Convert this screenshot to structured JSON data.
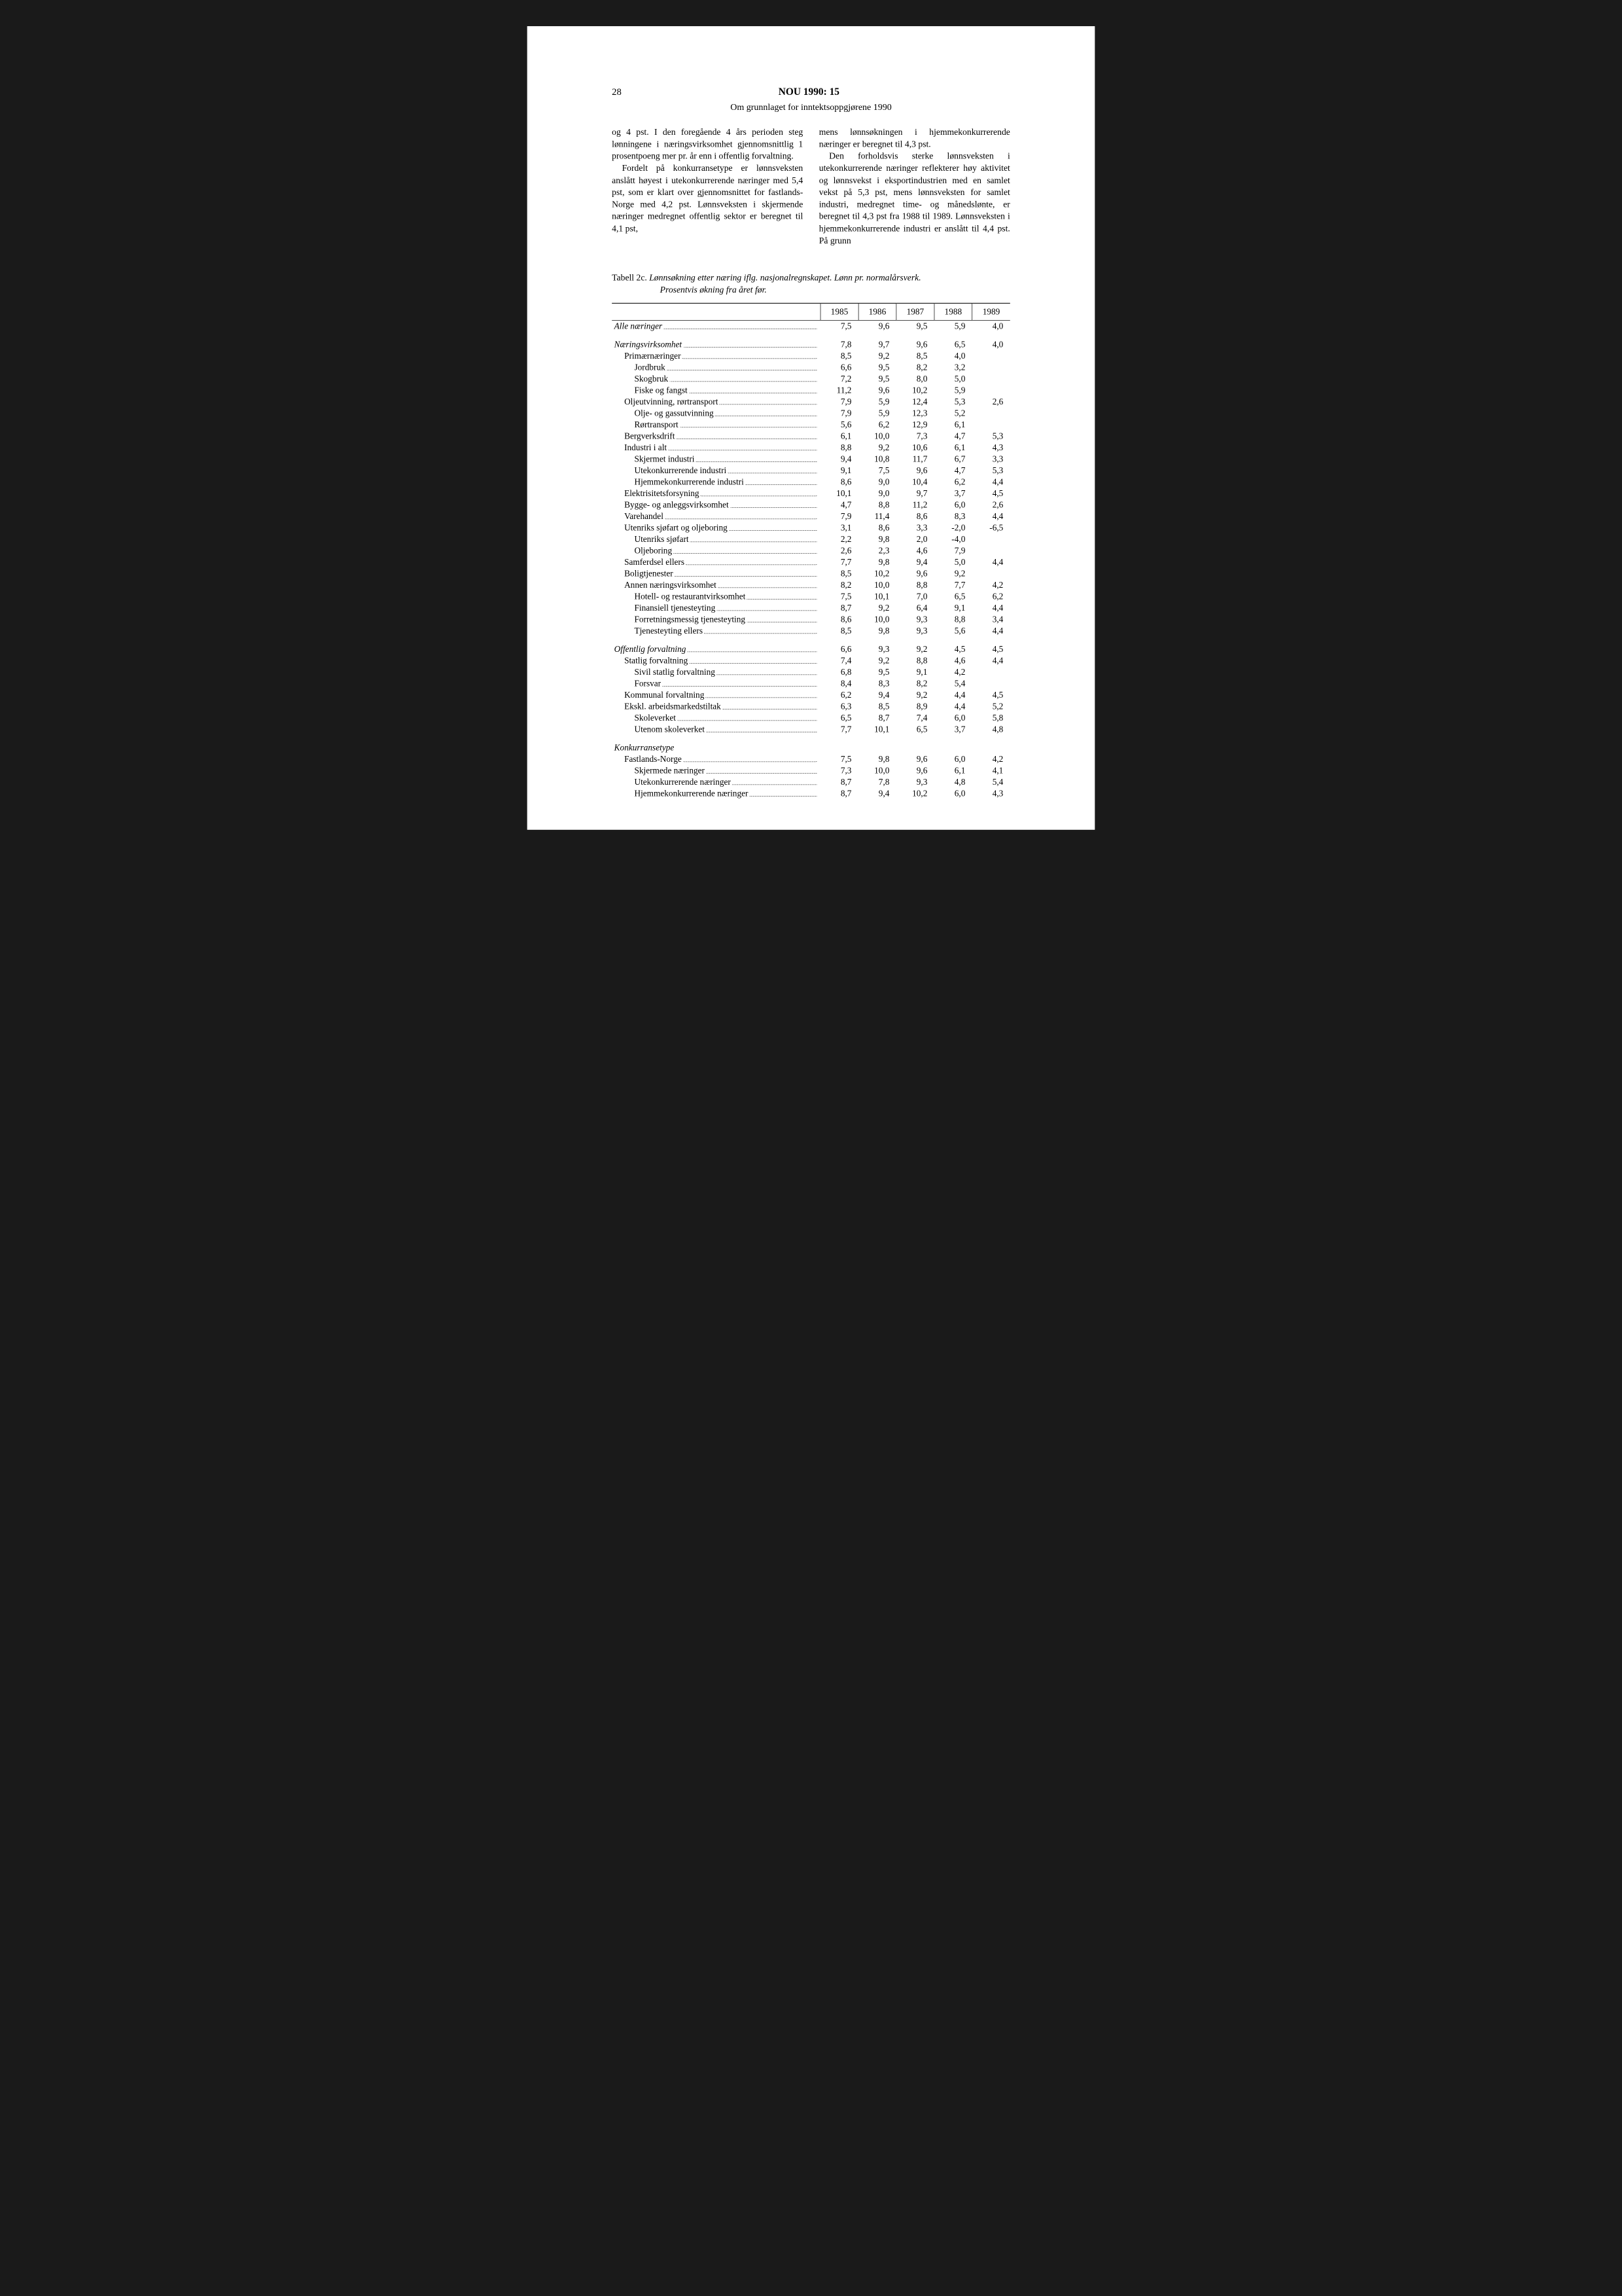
{
  "page_number": "28",
  "doc_title": "NOU 1990: 15",
  "subtitle": "Om grunnlaget for inntektsoppgjørene 1990",
  "left_column": {
    "p1": "og 4 pst. I den foregående 4 års perioden steg lønningene i næringsvirksomhet gjennomsnittlig 1 prosentpoeng mer pr. år enn i offentlig forvaltning.",
    "p2": "Fordelt på konkurransetype er lønnsveksten anslått høyest i utekonkurrerende næringer med 5,4 pst, som er klart over gjennomsnittet for fastlands-Norge med 4,2 pst. Lønnsveksten i skjermende næringer medregnet offentlig sektor er beregnet til 4,1 pst,"
  },
  "right_column": {
    "p1": "mens lønnsøkningen i hjemmekonkurrerende næringer er beregnet til 4,3 pst.",
    "p2": "Den forholdsvis sterke lønnsveksten i utekonkurrerende næringer reflekterer høy aktivitet og lønnsvekst i eksportindustrien med en samlet vekst på 5,3 pst, mens lønnsveksten for samlet industri, medregnet time- og månedslønte, er beregnet til 4,3 pst fra 1988 til 1989. Lønnsveksten i hjemmekonkurrerende industri er anslått til 4,4 pst. På grunn"
  },
  "table_caption": {
    "prefix": "Tabell 2c. ",
    "title_line1": "Lønnsøkning etter næring iflg. nasjonalregnskapet. Lønn pr. normalårsverk.",
    "title_line2": "Prosentvis økning fra året før."
  },
  "columns": [
    "1985",
    "1986",
    "1987",
    "1988",
    "1989"
  ],
  "rows": [
    {
      "label": "Alle næringer",
      "indent": 0,
      "italic": true,
      "values": [
        "7,5",
        "9,6",
        "9,5",
        "5,9",
        "4,0"
      ],
      "spacer_after": true
    },
    {
      "label": "Næringsvirksomhet",
      "indent": 0,
      "italic": true,
      "values": [
        "7,8",
        "9,7",
        "9,6",
        "6,5",
        "4,0"
      ]
    },
    {
      "label": "Primærnæringer",
      "indent": 1,
      "values": [
        "8,5",
        "9,2",
        "8,5",
        "4,0",
        ""
      ]
    },
    {
      "label": "Jordbruk",
      "indent": 2,
      "values": [
        "6,6",
        "9,5",
        "8,2",
        "3,2",
        ""
      ]
    },
    {
      "label": "Skogbruk",
      "indent": 2,
      "values": [
        "7,2",
        "9,5",
        "8,0",
        "5,0",
        ""
      ]
    },
    {
      "label": "Fiske og fangst",
      "indent": 2,
      "values": [
        "11,2",
        "9,6",
        "10,2",
        "5,9",
        ""
      ]
    },
    {
      "label": "Oljeutvinning, rørtransport",
      "indent": 1,
      "values": [
        "7,9",
        "5,9",
        "12,4",
        "5,3",
        "2,6"
      ]
    },
    {
      "label": "Olje- og gassutvinning",
      "indent": 2,
      "values": [
        "7,9",
        "5,9",
        "12,3",
        "5,2",
        ""
      ]
    },
    {
      "label": "Rørtransport",
      "indent": 2,
      "values": [
        "5,6",
        "6,2",
        "12,9",
        "6,1",
        ""
      ]
    },
    {
      "label": "Bergverksdrift",
      "indent": 1,
      "values": [
        "6,1",
        "10,0",
        "7,3",
        "4,7",
        "5,3"
      ]
    },
    {
      "label": "Industri i alt",
      "indent": 1,
      "values": [
        "8,8",
        "9,2",
        "10,6",
        "6,1",
        "4,3"
      ]
    },
    {
      "label": "Skjermet industri",
      "indent": 2,
      "values": [
        "9,4",
        "10,8",
        "11,7",
        "6,7",
        "3,3"
      ]
    },
    {
      "label": "Utekonkurrerende industri",
      "indent": 2,
      "values": [
        "9,1",
        "7,5",
        "9,6",
        "4,7",
        "5,3"
      ]
    },
    {
      "label": "Hjemmekonkurrerende industri",
      "indent": 2,
      "values": [
        "8,6",
        "9,0",
        "10,4",
        "6,2",
        "4,4"
      ]
    },
    {
      "label": "Elektrisitetsforsyning",
      "indent": 1,
      "values": [
        "10,1",
        "9,0",
        "9,7",
        "3,7",
        "4,5"
      ]
    },
    {
      "label": "Bygge- og anleggsvirksomhet",
      "indent": 1,
      "values": [
        "4,7",
        "8,8",
        "11,2",
        "6,0",
        "2,6"
      ]
    },
    {
      "label": "Varehandel",
      "indent": 1,
      "values": [
        "7,9",
        "11,4",
        "8,6",
        "8,3",
        "4,4"
      ]
    },
    {
      "label": "Utenriks sjøfart og oljeboring",
      "indent": 1,
      "values": [
        "3,1",
        "8,6",
        "3,3",
        "-2,0",
        "-6,5"
      ]
    },
    {
      "label": "Utenriks sjøfart",
      "indent": 2,
      "values": [
        "2,2",
        "9,8",
        "2,0",
        "-4,0",
        ""
      ]
    },
    {
      "label": "Oljeboring",
      "indent": 2,
      "values": [
        "2,6",
        "2,3",
        "4,6",
        "7,9",
        ""
      ]
    },
    {
      "label": "Samferdsel ellers",
      "indent": 1,
      "values": [
        "7,7",
        "9,8",
        "9,4",
        "5,0",
        "4,4"
      ]
    },
    {
      "label": "Boligtjenester",
      "indent": 1,
      "values": [
        "8,5",
        "10,2",
        "9,6",
        "9,2",
        ""
      ]
    },
    {
      "label": "Annen næringsvirksomhet",
      "indent": 1,
      "values": [
        "8,2",
        "10,0",
        "8,8",
        "7,7",
        "4,2"
      ]
    },
    {
      "label": "Hotell- og restaurantvirksomhet",
      "indent": 2,
      "values": [
        "7,5",
        "10,1",
        "7,0",
        "6,5",
        "6,2"
      ]
    },
    {
      "label": "Finansiell tjenesteyting",
      "indent": 2,
      "values": [
        "8,7",
        "9,2",
        "6,4",
        "9,1",
        "4,4"
      ]
    },
    {
      "label": "Forretningsmessig tjenesteyting",
      "indent": 2,
      "values": [
        "8,6",
        "10,0",
        "9,3",
        "8,8",
        "3,4"
      ]
    },
    {
      "label": "Tjenesteyting ellers",
      "indent": 2,
      "values": [
        "8,5",
        "9,8",
        "9,3",
        "5,6",
        "4,4"
      ],
      "spacer_after": true
    },
    {
      "label": "Offentlig forvaltning",
      "indent": 0,
      "italic": true,
      "values": [
        "6,6",
        "9,3",
        "9,2",
        "4,5",
        "4,5"
      ]
    },
    {
      "label": "Statlig forvaltning",
      "indent": 1,
      "values": [
        "7,4",
        "9,2",
        "8,8",
        "4,6",
        "4,4"
      ]
    },
    {
      "label": "Sivil statlig forvaltning",
      "indent": 2,
      "values": [
        "6,8",
        "9,5",
        "9,1",
        "4,2",
        ""
      ]
    },
    {
      "label": "Forsvar",
      "indent": 2,
      "values": [
        "8,4",
        "8,3",
        "8,2",
        "5,4",
        ""
      ]
    },
    {
      "label": "Kommunal forvaltning",
      "indent": 1,
      "values": [
        "6,2",
        "9,4",
        "9,2",
        "4,4",
        "4,5"
      ]
    },
    {
      "label": "Ekskl. arbeidsmarkedstiltak",
      "indent": 1,
      "values": [
        "6,3",
        "8,5",
        "8,9",
        "4,4",
        "5,2"
      ]
    },
    {
      "label": "Skoleverket",
      "indent": 2,
      "values": [
        "6,5",
        "8,7",
        "7,4",
        "6,0",
        "5,8"
      ]
    },
    {
      "label": "Utenom skoleverket",
      "indent": 2,
      "values": [
        "7,7",
        "10,1",
        "6,5",
        "3,7",
        "4,8"
      ],
      "spacer_after": true
    },
    {
      "label": "Konkurransetype",
      "indent": 0,
      "italic": true,
      "values": [
        "",
        "",
        "",
        "",
        ""
      ],
      "no_dots": true
    },
    {
      "label": "Fastlands-Norge",
      "indent": 1,
      "values": [
        "7,5",
        "9,8",
        "9,6",
        "6,0",
        "4,2"
      ]
    },
    {
      "label": "Skjermede næringer",
      "indent": 2,
      "values": [
        "7,3",
        "10,0",
        "9,6",
        "6,1",
        "4,1"
      ]
    },
    {
      "label": "Utekonkurrerende næringer",
      "indent": 2,
      "values": [
        "8,7",
        "7,8",
        "9,3",
        "4,8",
        "5,4"
      ]
    },
    {
      "label": "Hjemmekonkurrerende næringer",
      "indent": 2,
      "values": [
        "8,7",
        "9,4",
        "10,2",
        "6,0",
        "4,3"
      ]
    }
  ]
}
